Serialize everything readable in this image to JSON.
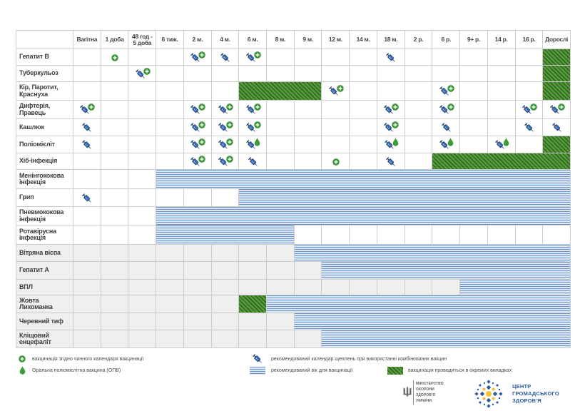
{
  "colors": {
    "syringe": "#3a6db4",
    "syringe_outline": "#1e3d70",
    "plus": "#3c9c37",
    "drop": "#3c9c37",
    "recommended": "#6a93cc",
    "recommended_light": "#dce7f5",
    "special_dark": "#2f6a22",
    "special_light": "#5b9a3b",
    "lower_rows": "#efefef",
    "grid": "#cccccc",
    "logo_blue": "#2b5aa3",
    "logo_yellow": "#f2c230"
  },
  "chart_data": {
    "type": "table",
    "columns": [
      "Вагітна",
      "1 доба",
      "48 год -\n5 доба",
      "6 тиж.",
      "2 м.",
      "4 м.",
      "6 м.",
      "8 м.",
      "9 м.",
      "12 м.",
      "14 м.",
      "18 м.",
      "2 р.",
      "6 р.",
      "9+ р.",
      "14 р.",
      "16 р.",
      "Дорослі"
    ],
    "rows": [
      {
        "label": "Гепатит В",
        "marks": [
          {
            "col": "1 доба",
            "icons": [
              "plus"
            ]
          },
          {
            "col": "2 м.",
            "icons": [
              "syringe",
              "plus"
            ]
          },
          {
            "col": "4 м.",
            "icons": [
              "syringe"
            ]
          },
          {
            "col": "6 м.",
            "icons": [
              "syringe",
              "plus"
            ]
          },
          {
            "col": "18 м.",
            "icons": [
              "syringe"
            ]
          }
        ],
        "bands": [
          {
            "from": "Дорослі",
            "to": "Дорослі",
            "type": "special"
          }
        ]
      },
      {
        "label": "Туберкульоз",
        "marks": [
          {
            "col": "48 год -\n5 доба",
            "icons": [
              "syringe",
              "plus"
            ]
          }
        ],
        "bands": [
          {
            "from": "Дорослі",
            "to": "Дорослі",
            "type": "special"
          }
        ]
      },
      {
        "label": "Кір, Паротит,\nКраснуха",
        "marks": [
          {
            "col": "12 м.",
            "icons": [
              "syringe",
              "plus"
            ]
          },
          {
            "col": "6 р.",
            "icons": [
              "syringe",
              "plus"
            ]
          }
        ],
        "bands": [
          {
            "from": "6 м.",
            "to": "9 м.",
            "type": "special"
          },
          {
            "from": "Дорослі",
            "to": "Дорослі",
            "type": "special"
          }
        ]
      },
      {
        "label": "Дифтерія,\nПравець",
        "marks": [
          {
            "col": "Вагітна",
            "icons": [
              "syringe",
              "plus"
            ]
          },
          {
            "col": "2 м.",
            "icons": [
              "syringe",
              "plus"
            ]
          },
          {
            "col": "4 м.",
            "icons": [
              "syringe",
              "plus"
            ]
          },
          {
            "col": "6 м.",
            "icons": [
              "syringe",
              "plus"
            ]
          },
          {
            "col": "18 м.",
            "icons": [
              "syringe",
              "plus"
            ]
          },
          {
            "col": "6 р.",
            "icons": [
              "syringe",
              "plus"
            ]
          },
          {
            "col": "16 р.",
            "icons": [
              "syringe",
              "plus"
            ]
          },
          {
            "col": "Дорослі",
            "icons": [
              "syringe",
              "plus"
            ]
          }
        ],
        "bands": []
      },
      {
        "label": "Кашлюк",
        "marks": [
          {
            "col": "Вагітна",
            "icons": [
              "syringe"
            ]
          },
          {
            "col": "2 м.",
            "icons": [
              "syringe",
              "plus"
            ]
          },
          {
            "col": "4 м.",
            "icons": [
              "syringe",
              "plus"
            ]
          },
          {
            "col": "6 м.",
            "icons": [
              "syringe",
              "plus"
            ]
          },
          {
            "col": "18 м.",
            "icons": [
              "syringe",
              "plus"
            ]
          },
          {
            "col": "6 р.",
            "icons": [
              "syringe"
            ]
          },
          {
            "col": "16 р.",
            "icons": [
              "syringe"
            ]
          },
          {
            "col": "Дорослі",
            "icons": [
              "syringe"
            ]
          }
        ],
        "bands": []
      },
      {
        "label": "Поліомієліт",
        "marks": [
          {
            "col": "Вагітна",
            "icons": [
              "syringe"
            ]
          },
          {
            "col": "2 м.",
            "icons": [
              "syringe",
              "plus"
            ]
          },
          {
            "col": "4 м.",
            "icons": [
              "syringe",
              "plus"
            ]
          },
          {
            "col": "6 м.",
            "icons": [
              "syringe",
              "drop"
            ]
          },
          {
            "col": "18 м.",
            "icons": [
              "syringe",
              "drop"
            ]
          },
          {
            "col": "6 р.",
            "icons": [
              "syringe",
              "drop"
            ]
          },
          {
            "col": "14 р.",
            "icons": [
              "syringe",
              "drop"
            ]
          }
        ],
        "bands": [
          {
            "from": "Дорослі",
            "to": "Дорослі",
            "type": "special"
          }
        ]
      },
      {
        "label": "Хіб-інфекція",
        "marks": [
          {
            "col": "2 м.",
            "icons": [
              "syringe",
              "plus"
            ]
          },
          {
            "col": "4 м.",
            "icons": [
              "syringe",
              "plus"
            ]
          },
          {
            "col": "6 м.",
            "icons": [
              "syringe"
            ]
          },
          {
            "col": "12 м.",
            "icons": [
              "plus"
            ]
          },
          {
            "col": "18 м.",
            "icons": [
              "syringe"
            ]
          }
        ],
        "bands": [
          {
            "from": "6 р.",
            "to": "Дорослі",
            "type": "special"
          }
        ]
      },
      {
        "label": "Менінгококова\nінфекція",
        "marks": [],
        "bands": [
          {
            "from": "6 тиж.",
            "to": "Дорослі",
            "type": "recommended"
          }
        ]
      },
      {
        "label": "Грип",
        "marks": [
          {
            "col": "Вагітна",
            "icons": [
              "syringe"
            ]
          }
        ],
        "bands": [
          {
            "from": "6 м.",
            "to": "Дорослі",
            "type": "recommended"
          }
        ]
      },
      {
        "label": "Пневмококова\nінфекція",
        "marks": [],
        "bands": [
          {
            "from": "6 тиж.",
            "to": "Дорослі",
            "type": "recommended"
          }
        ]
      },
      {
        "label": "Ротавірусна\nінфекція",
        "marks": [],
        "bands": [
          {
            "from": "6 тиж.",
            "to": "8 м.",
            "type": "recommended"
          }
        ]
      },
      {
        "label": "Вітряна віспа",
        "marks": [],
        "bands": [
          {
            "from": "9 м.",
            "to": "Дорослі",
            "type": "recommended"
          }
        ]
      },
      {
        "label": "Гепатит А",
        "marks": [],
        "bands": [
          {
            "from": "12 м.",
            "to": "Дорослі",
            "type": "recommended"
          }
        ]
      },
      {
        "label": "ВПЛ",
        "marks": [],
        "bands": [
          {
            "from": "9+ р.",
            "to": "Дорослі",
            "type": "recommended"
          }
        ]
      },
      {
        "label": "Жовта\nЛихоманка",
        "marks": [],
        "bands": [
          {
            "from": "6 м.",
            "to": "6 м.",
            "type": "special"
          },
          {
            "from": "8 м.",
            "to": "Дорослі",
            "type": "recommended"
          }
        ]
      },
      {
        "label": "Черевний тиф",
        "marks": [],
        "bands": [
          {
            "from": "9 м.",
            "to": "Дорослі",
            "type": "recommended"
          }
        ]
      },
      {
        "label": "Кліщовий\nенцефаліт",
        "marks": [],
        "bands": [
          {
            "from": "12 м.",
            "to": "Дорослі",
            "type": "recommended"
          }
        ]
      }
    ],
    "legend": [
      {
        "icon": "plus",
        "text": "вакцинація згідно чинного календаря вакцинації"
      },
      {
        "icon": "drop",
        "text": "Оральна поліомієлітна вакцина (ОПВ)"
      },
      {
        "icon": "syringe",
        "text": "рекомендований календар щеплень при використанні комбінованих вакцин"
      },
      {
        "icon": "recommended",
        "text": "рекомендований вік для вакцинації"
      },
      {
        "icon": "special",
        "text": "вакцинація проводиться в окремих випадках"
      }
    ]
  },
  "logos": {
    "ministry": {
      "icon": "trident-icon",
      "lines": [
        "МІНІСТЕРСТВО",
        "ОХОРОНИ",
        "ЗДОРОВ'Я",
        "УКРАЇНИ"
      ]
    },
    "phc": {
      "icon": "phc-emblem-icon",
      "lines": [
        "ЦЕНТР",
        "ГРОМАДСЬКОГО",
        "ЗДОРОВ'Я"
      ]
    }
  }
}
